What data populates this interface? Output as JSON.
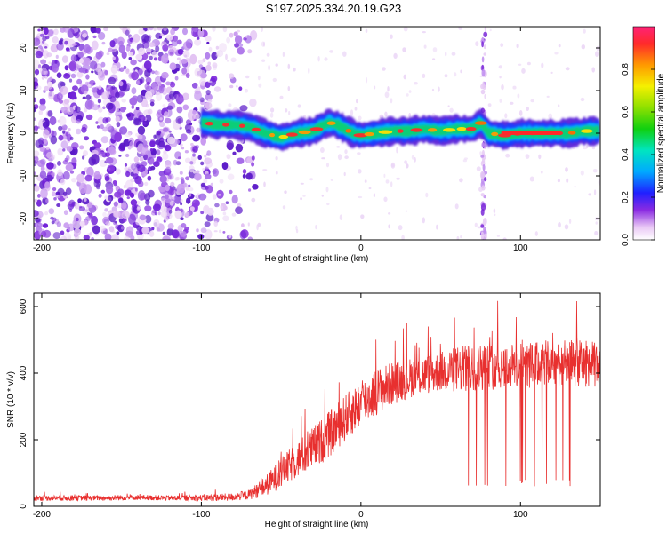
{
  "title": "S197.2025.334.20.19.G23",
  "chart_data": [
    {
      "type": "heatmap",
      "name": "spectrogram",
      "xlabel": "Height of straight line (km)",
      "ylabel": "Frequency (Hz)",
      "xlim": [
        -205,
        150
      ],
      "ylim": [
        -25,
        25
      ],
      "x_ticks": [
        -200,
        -100,
        0,
        100
      ],
      "x_tick_labels": [
        "-200",
        "-100",
        "0",
        "100"
      ],
      "y_ticks": [
        -20,
        -10,
        0,
        10,
        20
      ],
      "y_tick_labels": [
        "-20",
        "-10",
        "0",
        "10",
        "20"
      ],
      "noise_region_x": [
        -205,
        -95
      ],
      "signal_center_trace": {
        "x": [
          -100,
          -90,
          -80,
          -70,
          -60,
          -50,
          -40,
          -30,
          -20,
          -15,
          -10,
          -5,
          0,
          10,
          20,
          30,
          40,
          50,
          60,
          70,
          75,
          80,
          90,
          100,
          110,
          120,
          130,
          140,
          150
        ],
        "y": [
          2.5,
          2.0,
          2.0,
          1.5,
          0.0,
          -1.0,
          0.0,
          0.5,
          2.5,
          2.0,
          1.0,
          0.0,
          -0.5,
          0.0,
          0.5,
          0.5,
          1.0,
          0.5,
          1.0,
          1.0,
          2.5,
          0.0,
          -0.5,
          0.0,
          0.0,
          0.0,
          0.0,
          0.5,
          0.5
        ]
      },
      "vertical_stripe_x": 77,
      "colorbar": {
        "label": "Normalized spectral amplitude",
        "range": [
          0.0,
          1.0
        ],
        "ticks": [
          0.0,
          0.2,
          0.4,
          0.6,
          0.8
        ],
        "tick_labels": [
          "0.0",
          "0.2",
          "0.4",
          "0.6",
          "0.8"
        ]
      }
    },
    {
      "type": "line",
      "name": "snr",
      "xlabel": "Height of straight line (km)",
      "ylabel": "SNR (10 * v/v)",
      "xlim": [
        -205,
        150
      ],
      "ylim": [
        0,
        640
      ],
      "x_ticks": [
        -200,
        -100,
        0,
        100
      ],
      "x_tick_labels": [
        "-200",
        "-100",
        "0",
        "100"
      ],
      "y_ticks": [
        0,
        200,
        400,
        600
      ],
      "y_tick_labels": [
        "0",
        "200",
        "400",
        "600"
      ],
      "series": [
        {
          "name": "SNR",
          "color": "#e8302f",
          "envelope_x": [
            -205,
            -180,
            -160,
            -140,
            -120,
            -100,
            -80,
            -70,
            -60,
            -50,
            -40,
            -30,
            -20,
            -10,
            0,
            10,
            20,
            30,
            40,
            50,
            60,
            70,
            80,
            90,
            100,
            110,
            120,
            130,
            140,
            150
          ],
          "envelope_mean": [
            25,
            25,
            25,
            27,
            25,
            25,
            28,
            35,
            60,
            100,
            140,
            175,
            215,
            265,
            310,
            345,
            370,
            385,
            395,
            405,
            410,
            415,
            420,
            420,
            420,
            425,
            430,
            430,
            430,
            420
          ],
          "envelope_spread": [
            8,
            8,
            8,
            8,
            8,
            10,
            12,
            15,
            30,
            45,
            55,
            65,
            70,
            70,
            70,
            70,
            65,
            60,
            60,
            60,
            70,
            70,
            70,
            70,
            70,
            70,
            70,
            70,
            70,
            70
          ],
          "dropout_start_x": 55,
          "dropout_value": 60
        }
      ]
    }
  ],
  "colors": {
    "snr_line": "#e8302f",
    "axis": "#000000",
    "background": "#ffffff"
  }
}
